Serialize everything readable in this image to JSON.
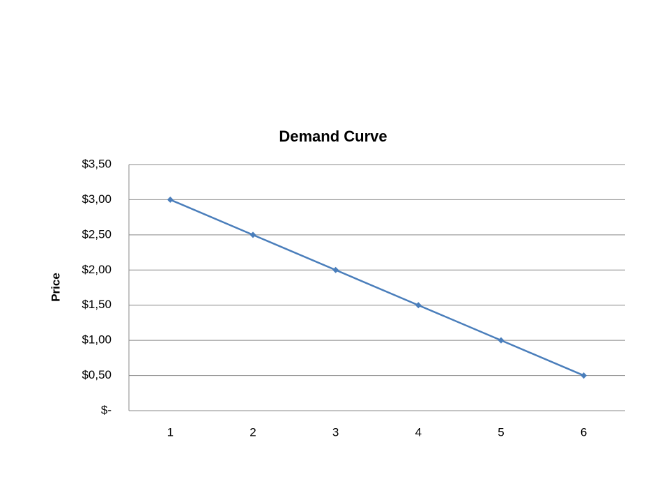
{
  "chart_data": {
    "type": "line",
    "title": "Demand Curve",
    "y_label": "Price",
    "categories": [
      "1",
      "2",
      "3",
      "4",
      "5",
      "6"
    ],
    "series": [
      {
        "name": "Price",
        "color": "#4a7ebb",
        "values": [
          3,
          2.5,
          2,
          1.5,
          1,
          0.5
        ]
      }
    ],
    "ylim": [
      0,
      3.5
    ],
    "yticks": [
      {
        "value": 0,
        "label": "$-"
      },
      {
        "value": 0.5,
        "label": "$0,50"
      },
      {
        "value": 1,
        "label": "$1,00"
      },
      {
        "value": 1.5,
        "label": "$1,50"
      },
      {
        "value": 2,
        "label": "$2,00"
      },
      {
        "value": 2.5,
        "label": "$2,50"
      },
      {
        "value": 3,
        "label": "$3,00"
      },
      {
        "value": 3.5,
        "label": "$3,50"
      }
    ],
    "grid": true,
    "legend": false
  }
}
